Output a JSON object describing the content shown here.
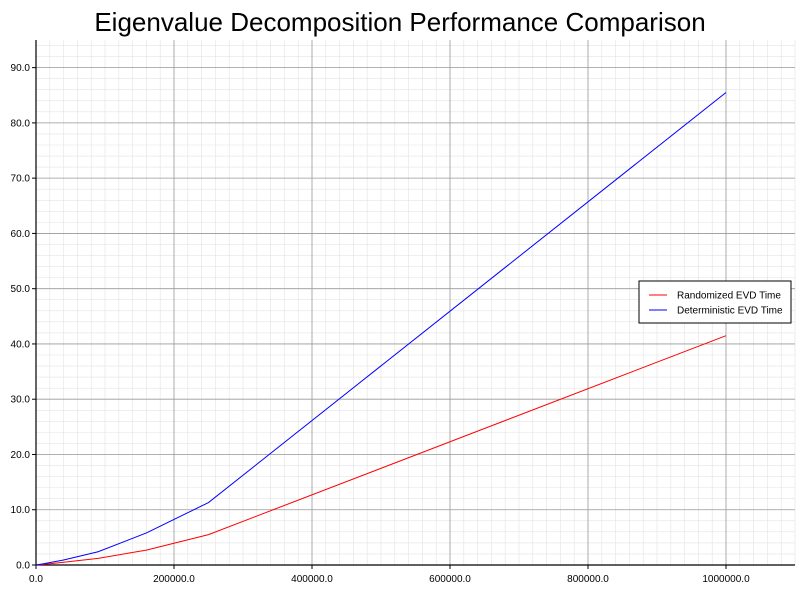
{
  "chart_data": {
    "type": "line",
    "title": "Eigenvalue Decomposition Performance Comparison",
    "xlabel": "",
    "ylabel": "",
    "xlim": [
      0,
      1100000
    ],
    "ylim": [
      0,
      95
    ],
    "x_major_ticks": [
      0,
      200000,
      400000,
      600000,
      800000,
      1000000
    ],
    "x_tick_labels": [
      "0.0",
      "200000.0",
      "400000.0",
      "600000.0",
      "800000.0",
      "1000000.0"
    ],
    "y_major_ticks": [
      0,
      10,
      20,
      30,
      40,
      50,
      60,
      70,
      80,
      90
    ],
    "y_tick_labels": [
      "0.0",
      "10.0",
      "20.0",
      "30.0",
      "40.0",
      "50.0",
      "60.0",
      "70.0",
      "80.0",
      "90.0"
    ],
    "grid": true,
    "legend_position": "right",
    "series": [
      {
        "name": "Randomized EVD Time",
        "color": "#ff0000",
        "x": [
          0,
          10000,
          40000,
          90000,
          160000,
          250000,
          1000000
        ],
        "y": [
          0,
          0.1,
          0.5,
          1.2,
          2.7,
          5.5,
          41.5
        ]
      },
      {
        "name": "Deterministic EVD Time",
        "color": "#0000ff",
        "x": [
          0,
          10000,
          40000,
          90000,
          160000,
          250000,
          1000000
        ],
        "y": [
          0,
          0.2,
          0.9,
          2.4,
          5.8,
          11.3,
          85.5
        ]
      }
    ]
  }
}
